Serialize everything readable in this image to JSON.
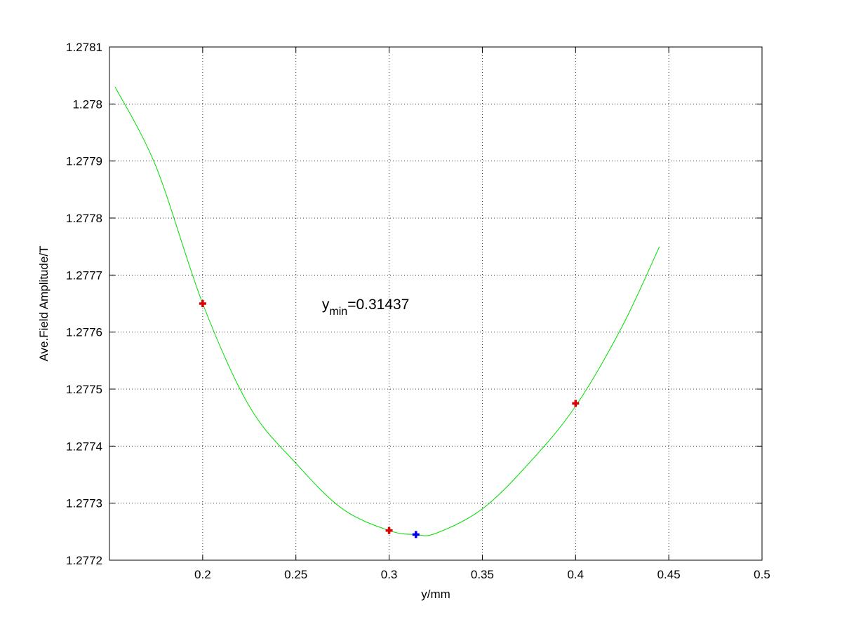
{
  "chart_data": {
    "type": "scatter",
    "title": "",
    "xlabel": "y/mm",
    "ylabel": "Ave.Field Amplitude/T",
    "xlim": [
      0.15,
      0.5
    ],
    "ylim": [
      1.2772,
      1.2781
    ],
    "grid": true,
    "x_ticks": [
      {
        "value": 0.2,
        "label": "0.2"
      },
      {
        "value": 0.25,
        "label": "0.25"
      },
      {
        "value": 0.3,
        "label": "0.3"
      },
      {
        "value": 0.35,
        "label": "0.35"
      },
      {
        "value": 0.4,
        "label": "0.4"
      },
      {
        "value": 0.45,
        "label": "0.45"
      },
      {
        "value": 0.5,
        "label": "0.5"
      }
    ],
    "y_ticks": [
      {
        "value": 1.2772,
        "label": "1.2772"
      },
      {
        "value": 1.2773,
        "label": "1.2773"
      },
      {
        "value": 1.2774,
        "label": "1.2774"
      },
      {
        "value": 1.2775,
        "label": "1.2775"
      },
      {
        "value": 1.2776,
        "label": "1.2776"
      },
      {
        "value": 1.2777,
        "label": "1.2777"
      },
      {
        "value": 1.2778,
        "label": "1.2778"
      },
      {
        "value": 1.2779,
        "label": "1.2779"
      },
      {
        "value": 1.278,
        "label": "1.278"
      },
      {
        "value": 1.2781,
        "label": "1.2781"
      }
    ],
    "series": [
      {
        "kind": "line",
        "color": "#00dd00",
        "points": [
          [
            0.153,
            1.27803
          ],
          [
            0.175,
            1.27789
          ],
          [
            0.2,
            1.27765
          ],
          [
            0.225,
            1.27747
          ],
          [
            0.25,
            1.27737
          ],
          [
            0.275,
            1.27729
          ],
          [
            0.3,
            1.277252
          ],
          [
            0.314,
            1.277245
          ],
          [
            0.325,
            1.277247
          ],
          [
            0.35,
            1.27729
          ],
          [
            0.375,
            1.27737
          ],
          [
            0.4,
            1.27747
          ],
          [
            0.425,
            1.27761
          ],
          [
            0.445,
            1.27775
          ]
        ]
      },
      {
        "kind": "markers",
        "marker": "plus",
        "color": "#dd0000",
        "points": [
          [
            0.2,
            1.27765
          ],
          [
            0.3,
            1.277252
          ],
          [
            0.4,
            1.277475
          ]
        ]
      },
      {
        "kind": "markers",
        "marker": "plus",
        "color": "#0000ee",
        "points": [
          [
            0.31437,
            1.277245
          ]
        ]
      }
    ],
    "annotation": {
      "base": "y",
      "subscript": "min",
      "rest": "=0.31437",
      "x": 0.264,
      "y": 1.27764
    }
  }
}
